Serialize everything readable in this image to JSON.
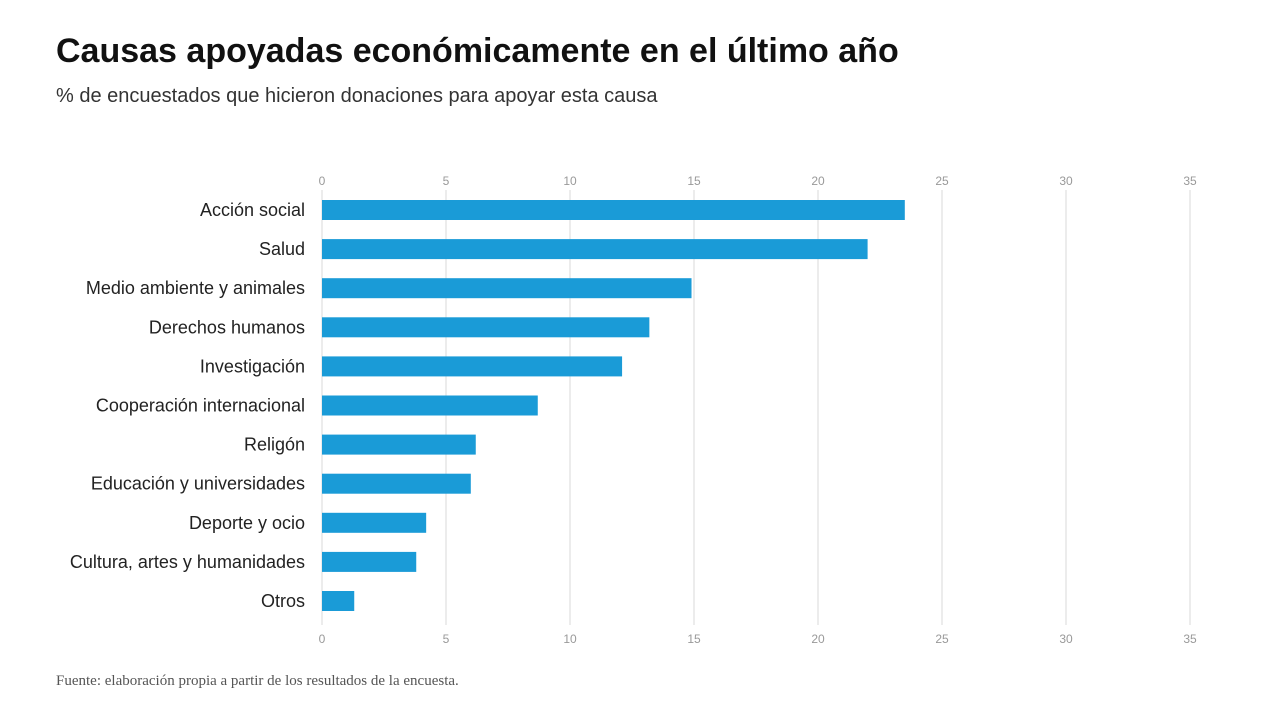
{
  "chart_data": {
    "type": "bar",
    "orientation": "horizontal",
    "title": "Causas apoyadas económicamente en el último año",
    "subtitle": "% de encuestados que hicieron donaciones para apoyar esta causa",
    "source": "Fuente: elaboración propia a partir de los resultados de la encuesta.",
    "categories": [
      "Acción social",
      "Salud",
      "Medio ambiente y animales",
      "Derechos humanos",
      "Investigación",
      "Cooperación internacional",
      "Religón",
      "Educación y universidades",
      "Deporte y ocio",
      "Cultura, artes y humanidades",
      "Otros"
    ],
    "values": [
      23.5,
      22,
      14.9,
      13.2,
      12.1,
      8.7,
      6.2,
      6.0,
      4.2,
      3.8,
      1.3
    ],
    "color": "#1a9bd7",
    "xlim": [
      0,
      35
    ],
    "xticks": [
      0,
      5,
      10,
      15,
      20,
      25,
      30,
      35
    ],
    "grid": true
  }
}
